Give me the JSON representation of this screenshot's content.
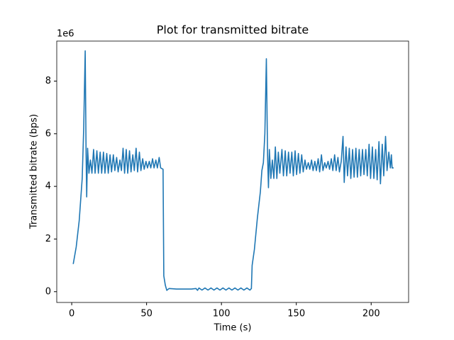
{
  "chart_data": {
    "type": "line",
    "title": "Plot for transmitted bitrate",
    "x_label": "Time (s)",
    "y_label": "Transmitted bitrate (bps)",
    "y_offset_label": "1e6",
    "xlim": [
      -10,
      225
    ],
    "ylim": [
      -0.41,
      9.52
    ],
    "xticks": [
      0,
      50,
      100,
      150,
      200
    ],
    "yticks": [
      0,
      2,
      4,
      6,
      8
    ],
    "x": [
      1,
      3,
      5,
      7,
      8,
      9,
      9.6,
      10,
      10.6,
      11.5,
      12.5,
      13.5,
      14.6,
      15.6,
      16.8,
      17.8,
      19,
      20,
      21.2,
      22.2,
      23.4,
      24.4,
      25.6,
      26.6,
      27.8,
      28.8,
      30,
      31,
      32.2,
      33.2,
      34.3,
      35.3,
      36.4,
      37.4,
      38.6,
      39.6,
      40.8,
      41.8,
      43,
      44,
      45.2,
      46.2,
      47.4,
      48.4,
      49.6,
      50.6,
      51.8,
      52.8,
      54,
      55,
      56.2,
      57.2,
      58.4,
      59.4,
      61,
      61.5,
      62.5,
      63.5,
      65,
      70,
      75,
      80,
      83,
      84,
      85,
      87,
      89,
      91,
      93,
      95,
      97,
      99,
      101,
      103,
      105,
      107,
      109,
      111,
      113,
      115,
      117,
      119,
      120,
      120.5,
      122,
      124,
      126,
      127,
      128,
      129,
      130,
      130.8,
      131.4,
      132,
      133,
      134,
      135,
      136,
      137,
      138,
      139,
      140.4,
      141.4,
      142.6,
      143.6,
      144.8,
      145.8,
      147,
      148,
      149.2,
      150.2,
      151.4,
      152.4,
      153.6,
      154.6,
      155.8,
      156.8,
      158,
      159,
      160.2,
      161.2,
      162.4,
      163.4,
      164.6,
      165.6,
      166.8,
      167.8,
      169,
      170,
      171.2,
      172.2,
      173.4,
      174.4,
      175.6,
      176.6,
      177.8,
      178.8,
      180,
      181.2,
      182,
      183.2,
      184.2,
      185.4,
      186.4,
      187.6,
      188.6,
      189.8,
      190.8,
      192,
      193,
      194.2,
      195.2,
      196.4,
      197.4,
      198.6,
      199.6,
      200.8,
      201.8,
      203,
      204,
      205.2,
      206.2,
      207.4,
      208.4,
      209.6,
      210.6,
      211.8,
      212.8,
      213.5,
      214,
      215
    ],
    "series": [
      {
        "color": "#1f77b4",
        "values": [
          1.05,
          1.7,
          2.7,
          4.3,
          6.2,
          9.15,
          5.2,
          3.6,
          5.45,
          4.5,
          5.0,
          4.5,
          5.4,
          4.5,
          5.35,
          4.5,
          5.3,
          4.5,
          5.3,
          4.5,
          5.25,
          4.5,
          5.2,
          4.55,
          5.2,
          4.6,
          5.1,
          4.55,
          5.0,
          4.6,
          5.45,
          4.5,
          5.4,
          4.5,
          5.35,
          4.55,
          5.2,
          4.6,
          5.45,
          4.55,
          5.3,
          4.6,
          5.05,
          4.65,
          4.95,
          4.7,
          4.95,
          4.7,
          5.05,
          4.7,
          5.0,
          4.7,
          5.1,
          4.7,
          4.65,
          0.6,
          0.25,
          0.05,
          0.12,
          0.1,
          0.1,
          0.1,
          0.12,
          0.05,
          0.14,
          0.06,
          0.14,
          0.06,
          0.14,
          0.06,
          0.14,
          0.06,
          0.14,
          0.06,
          0.14,
          0.06,
          0.14,
          0.06,
          0.14,
          0.06,
          0.14,
          0.06,
          0.12,
          1.0,
          1.6,
          2.8,
          3.8,
          4.6,
          4.9,
          6,
          8.85,
          5.2,
          3.95,
          5.4,
          4.3,
          5.0,
          4.3,
          5.5,
          4.3,
          5.3,
          4.5,
          5.4,
          4.4,
          5.35,
          4.4,
          5.3,
          4.5,
          5.3,
          4.4,
          5.35,
          4.45,
          5.25,
          4.5,
          5.2,
          4.55,
          5.0,
          4.65,
          4.9,
          4.65,
          5.0,
          4.6,
          4.95,
          4.6,
          5.05,
          4.55,
          5.2,
          4.6,
          4.9,
          4.7,
          4.95,
          4.65,
          5.05,
          4.6,
          5.2,
          4.6,
          5.1,
          4.55,
          4.95,
          5.9,
          4.15,
          5.5,
          4.4,
          5.45,
          4.3,
          5.4,
          4.35,
          5.45,
          4.35,
          5.4,
          4.4,
          5.4,
          4.45,
          5.4,
          4.4,
          5.6,
          4.3,
          5.5,
          4.3,
          5.4,
          4.25,
          5.7,
          4.1,
          5.6,
          4.4,
          5.9,
          4.6,
          5.3,
          4.7,
          5.2,
          4.7,
          4.7
        ]
      }
    ]
  }
}
